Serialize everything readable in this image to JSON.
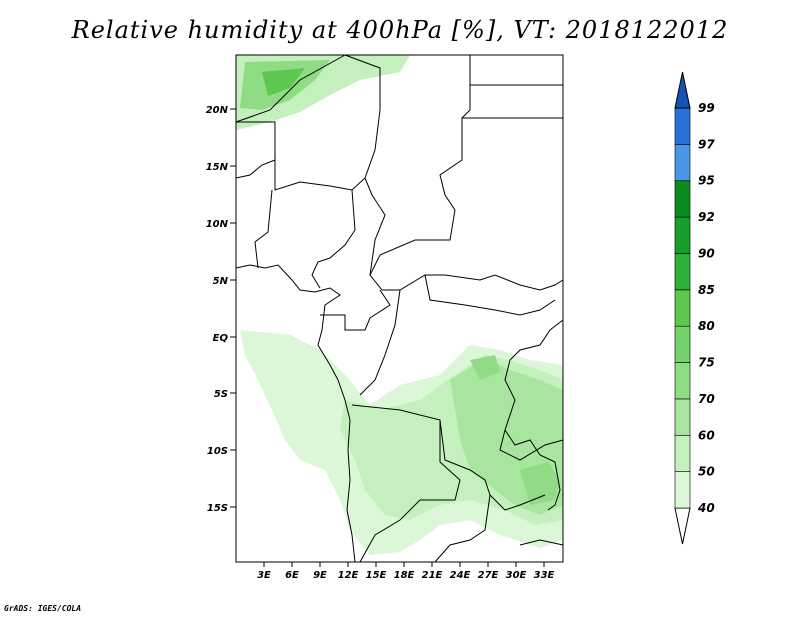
{
  "title": "Relative humidity at 400hPa [%], VT: 2018122012",
  "credit": "GrADS: IGES/COLA",
  "map": {
    "lat_labels": [
      "20N",
      "15N",
      "10N",
      "5N",
      "EQ",
      "5S",
      "10S",
      "15S"
    ],
    "lon_labels": [
      "3E",
      "6E",
      "9E",
      "12E",
      "15E",
      "18E",
      "21E",
      "24E",
      "27E",
      "30E",
      "33E"
    ]
  },
  "colorbar": {
    "levels": [
      "40",
      "50",
      "60",
      "70",
      "75",
      "80",
      "85",
      "90",
      "92",
      "95",
      "97",
      "99"
    ],
    "colors": [
      "#f0fdf0",
      "#dcf7d8",
      "#c4f0bd",
      "#a8e69f",
      "#8fdc85",
      "#75d26a",
      "#5cc850",
      "#2fb03a",
      "#14a02a",
      "#0a8c1e",
      "#4a96e6",
      "#2670d6",
      "#1452b4"
    ]
  }
}
